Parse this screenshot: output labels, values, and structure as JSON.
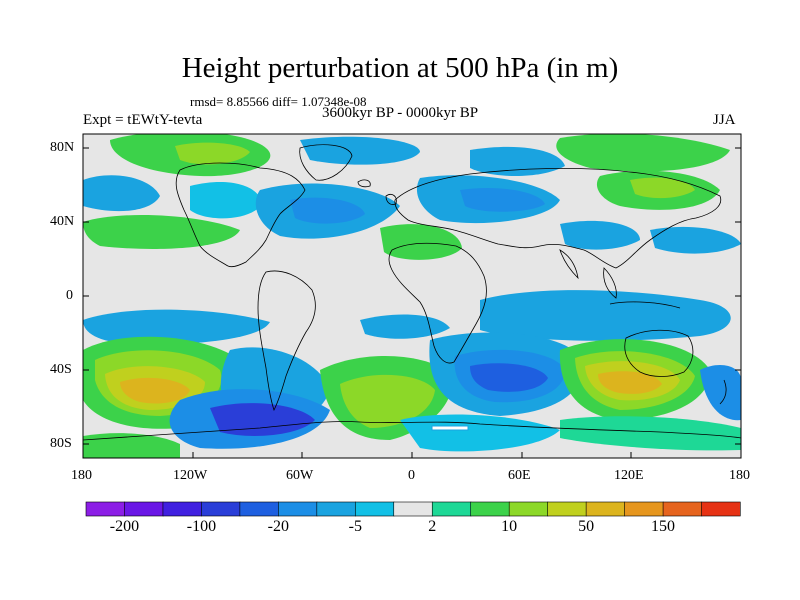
{
  "title": "Height perturbation at 500 hPa (in m)",
  "stats": "rmsd= 8.85566 diff= 1.07348e-08",
  "experiment": "Expt = tEWtY-tevta",
  "period": "3600kyr BP - 0000kyr BP",
  "season": "JJA",
  "lat_ticks": [
    "80N",
    "40N",
    "0",
    "40S",
    "80S"
  ],
  "lon_ticks": [
    "180",
    "120W",
    "60W",
    "0",
    "60E",
    "120E",
    "180"
  ],
  "colorbar": {
    "colors": [
      "#8c1ee6",
      "#6a17e6",
      "#4020e0",
      "#2a3ed8",
      "#1e5fe0",
      "#1c8ee6",
      "#1aa3e0",
      "#12c0e6",
      "#e6e6e6",
      "#1ed896",
      "#3cd24a",
      "#8cd828",
      "#c0d01e",
      "#dcb41e",
      "#e6961e",
      "#e6641e",
      "#e63214"
    ],
    "labels": [
      "-200",
      "-100",
      "-20",
      "-5",
      "2",
      "10",
      "50",
      "150"
    ],
    "label_after_swatch": [
      0,
      2,
      4,
      6,
      8,
      10,
      12,
      14
    ]
  }
}
